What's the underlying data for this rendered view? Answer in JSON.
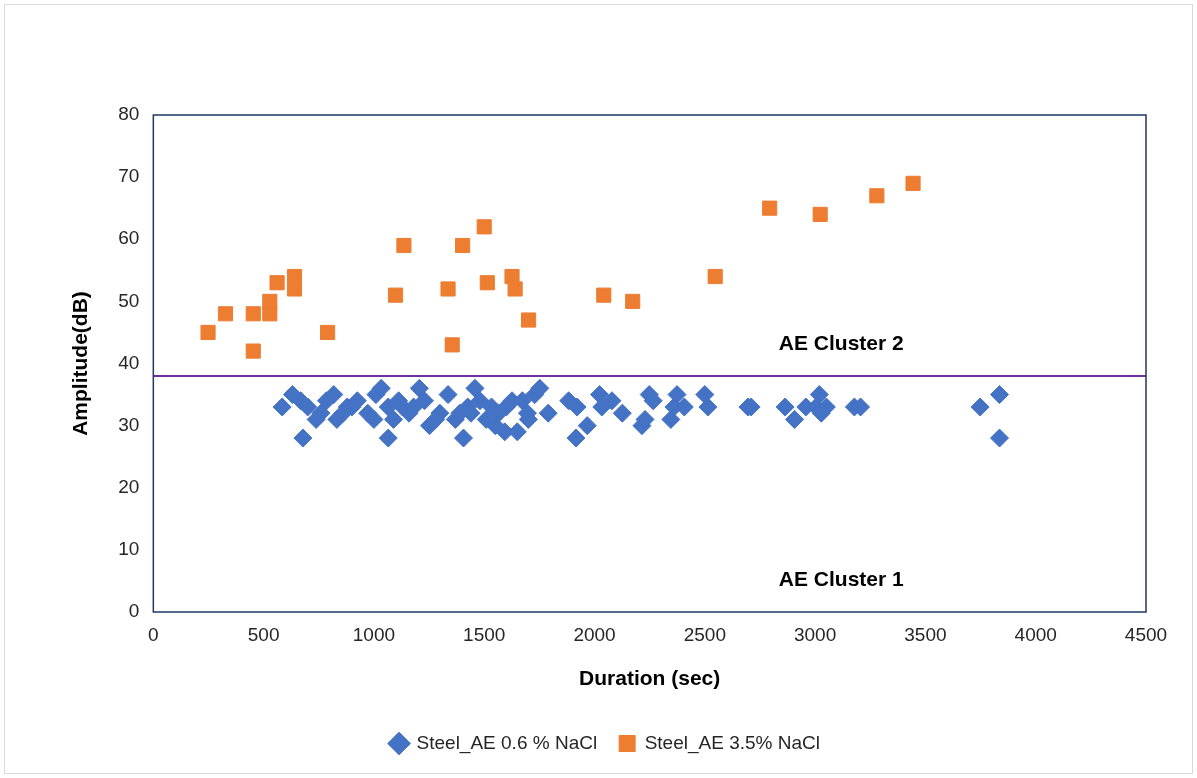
{
  "chart_data": {
    "type": "scatter",
    "xlabel": "Duration (sec)",
    "ylabel": "Amplitude(dB)",
    "xlim": [
      0,
      4500
    ],
    "xticks": [
      0,
      500,
      1000,
      1500,
      2000,
      2500,
      3000,
      3500,
      4000,
      4500
    ],
    "ylim": [
      0,
      80
    ],
    "yticks": [
      0,
      10,
      20,
      30,
      40,
      50,
      60,
      70,
      80
    ],
    "grid": false,
    "legend": "bottom",
    "series": [
      {
        "name": "Steel_AE 0.6 % NaCl",
        "color": "#4472c4",
        "marker": "diamond",
        "x": [
          584,
          631,
          678,
          668,
          738,
          785,
          818,
          832,
          879,
          925,
          972,
          1009,
          1033,
          1065,
          1089,
          1065,
          1112,
          1159,
          1206,
          1229,
          1252,
          1299,
          1336,
          1369,
          1406,
          1425,
          1458,
          1481,
          1509,
          1533,
          1565,
          1593,
          1626,
          1650,
          1673,
          1696,
          1729,
          1752,
          1790,
          1883,
          1916,
          1921,
          1967,
          2023,
          2033,
          2079,
          2126,
          2215,
          2229,
          2248,
          2266,
          2346,
          2360,
          2374,
          2407,
          2500,
          2514,
          2696,
          2710,
          2864,
          2907,
          2958,
          3005,
          3019,
          3028,
          3051,
          3178,
          3206,
          3748,
          3836,
          3836,
          700,
          760,
          860,
          900,
          1000,
          1130,
          1180,
          1280,
          1390,
          1440,
          1550,
          1600,
          1700
        ],
        "values": [
          33,
          35,
          28,
          34,
          31,
          34,
          35,
          31,
          33,
          34,
          32,
          35,
          36,
          33,
          31,
          28,
          34,
          32,
          36,
          34,
          30,
          32,
          35,
          31,
          28,
          33,
          36,
          34,
          31,
          33,
          32,
          29,
          34,
          29,
          34,
          32,
          35,
          36,
          32,
          34,
          28,
          33,
          30,
          35,
          33,
          34,
          32,
          30,
          31,
          35,
          34,
          31,
          33,
          35,
          33,
          35,
          33,
          33,
          33,
          33,
          31,
          33,
          33,
          35,
          32,
          33,
          33,
          33,
          33,
          35,
          28,
          33,
          32,
          32,
          33,
          31,
          33,
          33,
          31,
          32,
          32,
          30,
          33,
          31
        ]
      },
      {
        "name": "Steel_AE 3.5% NaCl",
        "color": "#ed7d31",
        "marker": "square",
        "x": [
          248,
          327,
          453,
          453,
          528,
          528,
          561,
          640,
          640,
          790,
          1098,
          1136,
          1336,
          1355,
          1402,
          1500,
          1514,
          1626,
          1640,
          1701,
          2042,
          2173,
          2547,
          2794,
          3023,
          3280,
          3444
        ],
        "values": [
          45,
          48,
          42,
          48,
          48,
          50,
          53,
          54,
          52,
          45,
          51,
          59,
          52,
          43,
          59,
          62,
          53,
          54,
          52,
          47,
          51,
          50,
          54,
          65,
          64,
          67,
          69
        ]
      }
    ],
    "ref_lines": [
      {
        "axis": "y",
        "value": 38,
        "color": "#7030a0",
        "line_style": "solid"
      }
    ],
    "annotations": [
      "AE Cluster 2",
      "AE Cluster 1"
    ]
  }
}
